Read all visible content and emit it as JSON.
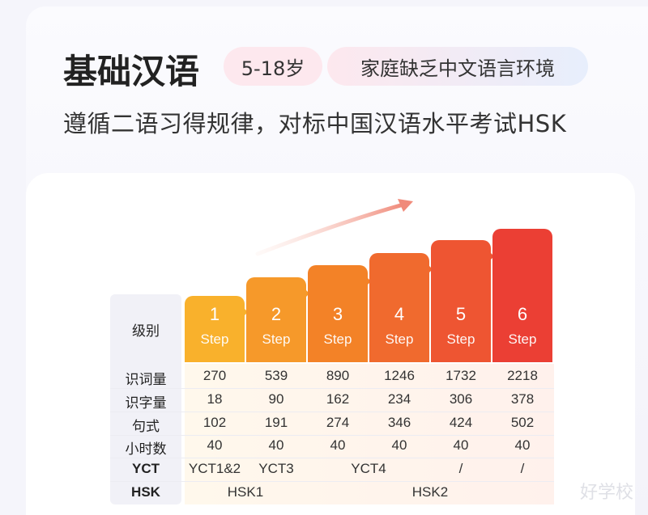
{
  "header": {
    "title": "基础汉语",
    "age_tag": "5-18岁",
    "env_tag": "家庭缺乏中文语言环境",
    "subtitle": "遵循二语习得规律，对标中国汉语水平考试HSK"
  },
  "table": {
    "level_label": "级别",
    "steps": [
      {
        "num": "1",
        "label": "Step",
        "color": "#f9b12c"
      },
      {
        "num": "2",
        "label": "Step",
        "color": "#f6992a"
      },
      {
        "num": "3",
        "label": "Step",
        "color": "#f38227"
      },
      {
        "num": "4",
        "label": "Step",
        "color": "#f06a2e"
      },
      {
        "num": "5",
        "label": "Step",
        "color": "#ee5532"
      },
      {
        "num": "6",
        "label": "Step",
        "color": "#eb3f34"
      }
    ],
    "rows": [
      {
        "label": "识词量",
        "values": [
          "270",
          "539",
          "890",
          "1246",
          "1732",
          "2218"
        ]
      },
      {
        "label": "识字量",
        "values": [
          "18",
          "90",
          "162",
          "234",
          "306",
          "378"
        ]
      },
      {
        "label": "句式",
        "values": [
          "102",
          "191",
          "274",
          "346",
          "424",
          "502"
        ]
      },
      {
        "label": "小时数",
        "values": [
          "40",
          "40",
          "40",
          "40",
          "40",
          "40"
        ]
      }
    ],
    "yct_label": "YCT",
    "yct": [
      "YCT1&2",
      "YCT3",
      "YCT4",
      "/",
      "/"
    ],
    "hsk_label": "HSK",
    "hsk": [
      "HSK1",
      "HSK2"
    ]
  },
  "watermark": "好学校"
}
